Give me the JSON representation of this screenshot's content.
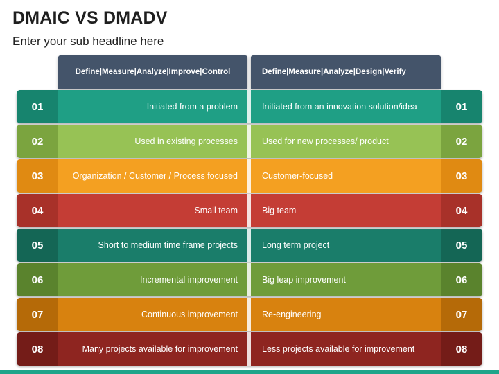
{
  "title": "DMAIC VS DMADV",
  "subtitle": "Enter your sub headline here",
  "headers": {
    "dmaic": "Define|Measure|Analyze|Improve|Control",
    "dmadv": "Define|Measure|Analyze|Design|Verify"
  },
  "rows": [
    {
      "num": "01",
      "dmaic": "Initiated from a problem",
      "dmadv": "Initiated from an innovation solution/idea",
      "color": "#1f9f85",
      "edge": "#17846e"
    },
    {
      "num": "02",
      "dmaic": "Used in existing processes",
      "dmadv": "Used for new processes/ product",
      "color": "#97c255",
      "edge": "#7ba43f"
    },
    {
      "num": "03",
      "dmaic": "Organization / Customer / Process focused",
      "dmadv": "Customer-focused",
      "color": "#f4a021",
      "edge": "#e08a12"
    },
    {
      "num": "04",
      "dmaic": "Small team",
      "dmadv": "Big team",
      "color": "#c43d35",
      "edge": "#a83129"
    },
    {
      "num": "05",
      "dmaic": "Short to medium time frame projects",
      "dmadv": "Long term project",
      "color": "#1a7d6a",
      "edge": "#146655"
    },
    {
      "num": "06",
      "dmaic": "Incremental improvement",
      "dmadv": "Big leap improvement",
      "color": "#6f9c3a",
      "edge": "#5a832d"
    },
    {
      "num": "07",
      "dmaic": "Continuous improvement",
      "dmadv": "Re-engineering",
      "color": "#d8820f",
      "edge": "#b56a08"
    },
    {
      "num": "08",
      "dmaic": "Many projects available for improvement",
      "dmadv": "Less projects available for improvement",
      "color": "#8e2520",
      "edge": "#741c18"
    }
  ]
}
